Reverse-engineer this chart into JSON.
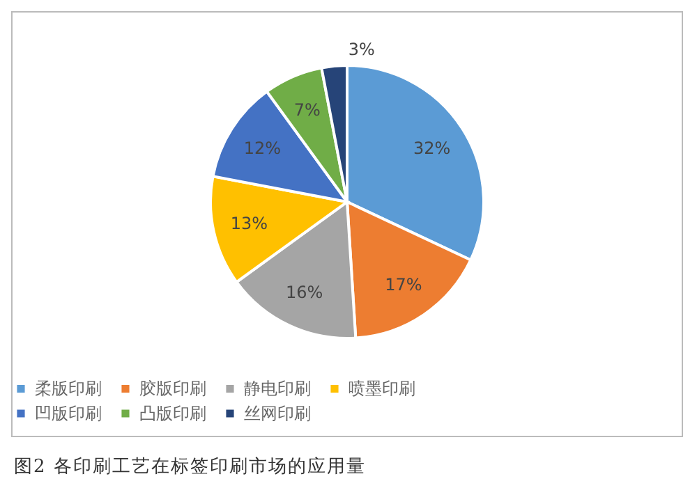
{
  "chart_data": {
    "type": "pie",
    "categories": [
      "柔版印刷",
      "胶版印刷",
      "静电印刷",
      "喷墨印刷",
      "凹版印刷",
      "凸版印刷",
      "丝网印刷"
    ],
    "values": [
      32,
      17,
      16,
      13,
      12,
      7,
      3
    ],
    "value_labels": [
      "32%",
      "17%",
      "16%",
      "13%",
      "12%",
      "7%",
      "3%"
    ],
    "colors": [
      "#5b9bd5",
      "#ed7d31",
      "#a5a5a5",
      "#ffc000",
      "#4472c4",
      "#70ad47",
      "#264478"
    ],
    "legend": "bottom",
    "annotations": [
      "图2 各印刷工艺在标签印刷市场的应用量"
    ]
  }
}
